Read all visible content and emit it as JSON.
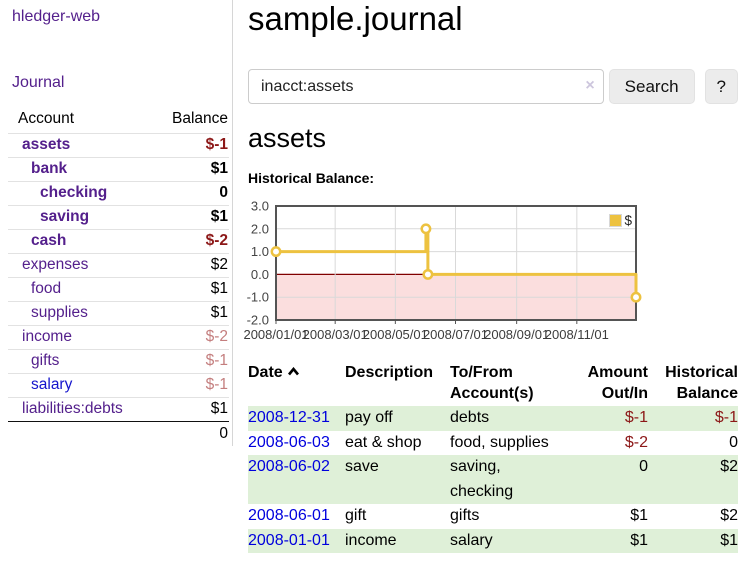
{
  "app": {
    "title": "hledger-web"
  },
  "nav": {
    "journal_label": "Journal"
  },
  "sidebar": {
    "header": {
      "account": "Account",
      "balance": "Balance"
    },
    "accounts": [
      {
        "name": "assets",
        "depth": 1,
        "bold": true,
        "link": "purple",
        "balance": "$-1",
        "tone": "neg"
      },
      {
        "name": "bank",
        "depth": 2,
        "bold": true,
        "link": "purple",
        "balance": "$1",
        "tone": "normal"
      },
      {
        "name": "checking",
        "depth": 3,
        "bold": true,
        "link": "purple",
        "balance": "0",
        "tone": "normal"
      },
      {
        "name": "saving",
        "depth": 3,
        "bold": true,
        "link": "purple",
        "balance": "$1",
        "tone": "normal"
      },
      {
        "name": "cash",
        "depth": 2,
        "bold": true,
        "link": "purple",
        "balance": "$-2",
        "tone": "neg"
      },
      {
        "name": "expenses",
        "depth": 1,
        "bold": false,
        "link": "purple",
        "balance": "$2",
        "tone": "normal"
      },
      {
        "name": "food",
        "depth": 2,
        "bold": false,
        "link": "purple",
        "balance": "$1",
        "tone": "normal"
      },
      {
        "name": "supplies",
        "depth": 2,
        "bold": false,
        "link": "purple",
        "balance": "$1",
        "tone": "normal"
      },
      {
        "name": "income",
        "depth": 1,
        "bold": false,
        "link": "purple",
        "balance": "$-2",
        "tone": "neg-soft"
      },
      {
        "name": "gifts",
        "depth": 2,
        "bold": false,
        "link": "purple",
        "balance": "$-1",
        "tone": "neg-soft"
      },
      {
        "name": "salary",
        "depth": 2,
        "bold": false,
        "link": "blue",
        "balance": "$-1",
        "tone": "neg-soft"
      },
      {
        "name": "liabilities:debts",
        "depth": 1,
        "bold": false,
        "link": "purple",
        "balance": "$1",
        "tone": "normal"
      }
    ],
    "total": "0"
  },
  "main": {
    "title": "sample.journal",
    "search": {
      "value": "inacct:assets",
      "clear_icon": "×",
      "button_label": "Search",
      "help_label": "?"
    },
    "account_heading": "assets",
    "chart_label": "Historical Balance:"
  },
  "chart_data": {
    "type": "line",
    "title": "Historical Balance:",
    "x_range": [
      "2008-01-01",
      "2008-12-31"
    ],
    "ylim": [
      -2,
      3
    ],
    "y_ticks": [
      "3.0",
      "2.0",
      "1.0",
      "0.0",
      "-1.0",
      "-2.0"
    ],
    "x_ticks": [
      {
        "date": "2008-01-01",
        "label": "2008/01/01"
      },
      {
        "date": "2008-03-01",
        "label": "2008/03/01"
      },
      {
        "date": "2008-05-01",
        "label": "2008/05/01"
      },
      {
        "date": "2008-07-01",
        "label": "2008/07/01"
      },
      {
        "date": "2008-09-01",
        "label": "2008/09/01"
      },
      {
        "date": "2008-11-01",
        "label": "2008/11/01"
      }
    ],
    "series": [
      {
        "name": "$",
        "color": "#edc240",
        "style": "step",
        "points": [
          [
            "2008-01-01",
            1
          ],
          [
            "2008-06-01",
            2
          ],
          [
            "2008-06-03",
            0
          ],
          [
            "2008-12-31",
            -1
          ]
        ]
      }
    ],
    "legend_position": "top-right",
    "grid": true,
    "negative_region_fill": "#fbdede",
    "zero_line_color": "#800000"
  },
  "register_table": {
    "columns": [
      {
        "label": "Date",
        "sorted": "asc"
      },
      {
        "label": "Description"
      },
      {
        "label": "To/From Account(s)"
      },
      {
        "label": "Amount Out/In"
      },
      {
        "label": "Historical Balance"
      }
    ],
    "rows": [
      {
        "date": "2008-12-31",
        "description": "pay off",
        "accounts": "debts",
        "amount": "$-1",
        "amount_tone": "neg",
        "balance": "$-1",
        "balance_tone": "neg",
        "striped": true
      },
      {
        "date": "2008-06-03",
        "description": "eat & shop",
        "accounts": "food, supplies",
        "amount": "$-2",
        "amount_tone": "neg",
        "balance": "0",
        "balance_tone": "normal",
        "striped": false
      },
      {
        "date": "2008-06-02",
        "description": "save",
        "accounts": "saving, checking",
        "amount": "0",
        "amount_tone": "normal",
        "balance": "$2",
        "balance_tone": "normal",
        "striped": true
      },
      {
        "date": "2008-06-01",
        "description": "gift",
        "accounts": "gifts",
        "amount": "$1",
        "amount_tone": "normal",
        "balance": "$2",
        "balance_tone": "normal",
        "striped": false
      },
      {
        "date": "2008-01-01",
        "description": "income",
        "accounts": "salary",
        "amount": "$1",
        "amount_tone": "normal",
        "balance": "$1",
        "balance_tone": "normal",
        "striped": true
      }
    ]
  },
  "colors": {
    "link_purple": "#54208c",
    "link_blue": "#1414cc",
    "date_link_blue": "#0000dd",
    "negative": "#8c1717",
    "negative_soft": "#c47e7e",
    "row_stripe_green": "#dff0d8",
    "series_gold": "#edc240",
    "chart_border": "#545454",
    "negative_region": "#fbdede",
    "zero_line": "#800000"
  }
}
